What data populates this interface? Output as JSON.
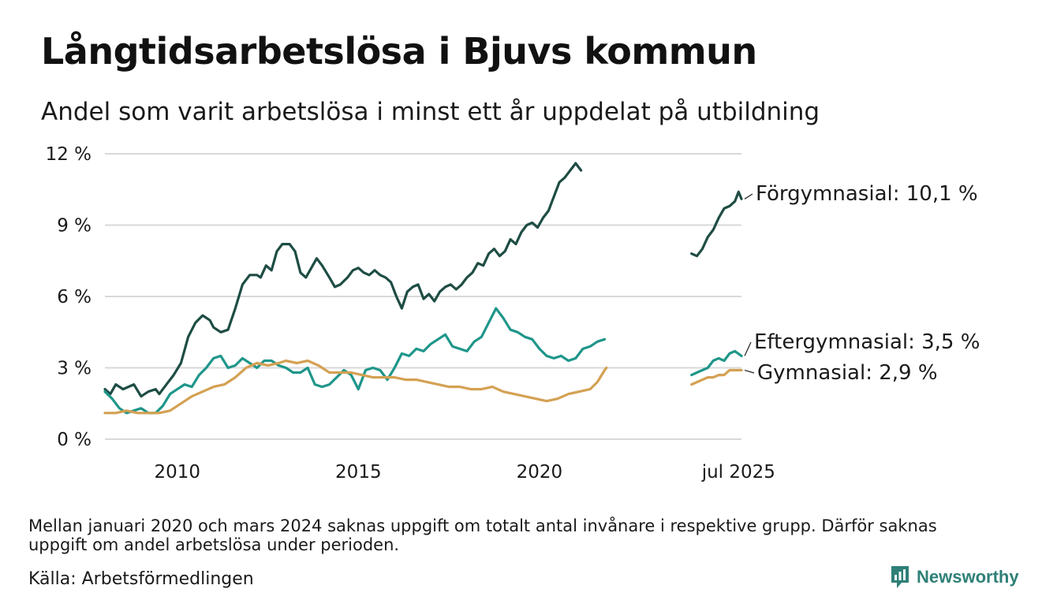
{
  "title": "Långtidsarbetslösa i Bjuvs kommun",
  "subtitle": "Andel som varit arbetslösa i minst ett år uppdelat på utbildning",
  "note": "Mellan januari 2020 och mars 2024 saknas uppgift om totalt antal invånare i respektive grupp. Därför saknas uppgift om andel arbetslösa under perioden.",
  "source": "Källa: Arbetsförmedlingen",
  "brand": "Newsworthy",
  "brand_icon": "newsworthy-logo-icon",
  "chart_data": {
    "type": "line",
    "title": "Långtidsarbetslösa i Bjuvs kommun",
    "subtitle": "Andel som varit arbetslösa i minst ett år uppdelat på utbildning",
    "ylim": [
      0,
      12
    ],
    "yticks": [
      0,
      3,
      6,
      9,
      12
    ],
    "ytick_labels": [
      "0 %",
      "3 %",
      "6 %",
      "9 %",
      "12 %"
    ],
    "xlim": [
      2008.0,
      2025.58
    ],
    "xticks": [
      2010,
      2015,
      2020,
      2025.5
    ],
    "xtick_labels": [
      "2010",
      "2015",
      "2020",
      "jul 2025"
    ],
    "grid": "horizontal",
    "legend": "direct labels at right end of each line",
    "series": [
      {
        "name": "Förgymnasial",
        "end_label": "Förgymnasial: 10,1 %",
        "color": "#1e4d44",
        "segments": [
          [
            [
              2008.0,
              2.1
            ],
            [
              2008.15,
              1.9
            ],
            [
              2008.3,
              2.3
            ],
            [
              2008.5,
              2.1
            ],
            [
              2008.8,
              2.3
            ],
            [
              2009.0,
              1.8
            ],
            [
              2009.2,
              2.0
            ],
            [
              2009.4,
              2.1
            ],
            [
              2009.5,
              1.9
            ],
            [
              2009.7,
              2.3
            ],
            [
              2009.9,
              2.7
            ],
            [
              2010.1,
              3.2
            ],
            [
              2010.3,
              4.3
            ],
            [
              2010.5,
              4.9
            ],
            [
              2010.7,
              5.2
            ],
            [
              2010.9,
              5.0
            ],
            [
              2011.0,
              4.7
            ],
            [
              2011.2,
              4.5
            ],
            [
              2011.4,
              4.6
            ],
            [
              2011.6,
              5.5
            ],
            [
              2011.8,
              6.5
            ],
            [
              2012.0,
              6.9
            ],
            [
              2012.2,
              6.9
            ],
            [
              2012.3,
              6.8
            ],
            [
              2012.45,
              7.3
            ],
            [
              2012.6,
              7.1
            ],
            [
              2012.75,
              7.9
            ],
            [
              2012.9,
              8.2
            ],
            [
              2013.1,
              8.2
            ],
            [
              2013.25,
              7.9
            ],
            [
              2013.4,
              7.0
            ],
            [
              2013.55,
              6.8
            ],
            [
              2013.7,
              7.2
            ],
            [
              2013.85,
              7.6
            ],
            [
              2014.0,
              7.3
            ],
            [
              2014.2,
              6.8
            ],
            [
              2014.35,
              6.4
            ],
            [
              2014.5,
              6.5
            ],
            [
              2014.7,
              6.8
            ],
            [
              2014.85,
              7.1
            ],
            [
              2015.0,
              7.2
            ],
            [
              2015.15,
              7.0
            ],
            [
              2015.3,
              6.9
            ],
            [
              2015.45,
              7.1
            ],
            [
              2015.6,
              6.9
            ],
            [
              2015.75,
              6.8
            ],
            [
              2015.9,
              6.6
            ],
            [
              2016.05,
              6.0
            ],
            [
              2016.2,
              5.5
            ],
            [
              2016.35,
              6.2
            ],
            [
              2016.5,
              6.4
            ],
            [
              2016.65,
              6.5
            ],
            [
              2016.8,
              5.9
            ],
            [
              2016.95,
              6.1
            ],
            [
              2017.1,
              5.8
            ],
            [
              2017.25,
              6.2
            ],
            [
              2017.4,
              6.4
            ],
            [
              2017.55,
              6.5
            ],
            [
              2017.7,
              6.3
            ],
            [
              2017.85,
              6.5
            ],
            [
              2018.0,
              6.8
            ],
            [
              2018.15,
              7.0
            ],
            [
              2018.3,
              7.4
            ],
            [
              2018.45,
              7.3
            ],
            [
              2018.6,
              7.8
            ],
            [
              2018.75,
              8.0
            ],
            [
              2018.9,
              7.7
            ],
            [
              2019.05,
              7.9
            ],
            [
              2019.2,
              8.4
            ],
            [
              2019.35,
              8.2
            ],
            [
              2019.5,
              8.7
            ],
            [
              2019.65,
              9.0
            ],
            [
              2019.8,
              9.1
            ],
            [
              2019.95,
              8.9
            ],
            [
              2020.1,
              9.3
            ],
            [
              2020.25,
              9.6
            ],
            [
              2020.4,
              10.2
            ],
            [
              2020.55,
              10.8
            ],
            [
              2020.7,
              11.0
            ],
            [
              2020.85,
              11.3
            ],
            [
              2021.0,
              11.6
            ],
            [
              2021.15,
              11.3
            ]
          ],
          [
            [
              2024.2,
              7.8
            ],
            [
              2024.35,
              7.7
            ],
            [
              2024.5,
              8.0
            ],
            [
              2024.65,
              8.5
            ],
            [
              2024.8,
              8.8
            ],
            [
              2024.95,
              9.3
            ],
            [
              2025.1,
              9.7
            ],
            [
              2025.25,
              9.8
            ],
            [
              2025.4,
              10.0
            ],
            [
              2025.5,
              10.4
            ],
            [
              2025.58,
              10.1
            ]
          ]
        ]
      },
      {
        "name": "Eftergymnasial",
        "end_label": "Eftergymnasial:  3,5 %",
        "color": "#1f968a",
        "segments": [
          [
            [
              2008.0,
              2.0
            ],
            [
              2008.2,
              1.7
            ],
            [
              2008.4,
              1.3
            ],
            [
              2008.6,
              1.1
            ],
            [
              2008.8,
              1.2
            ],
            [
              2009.0,
              1.3
            ],
            [
              2009.2,
              1.1
            ],
            [
              2009.4,
              1.1
            ],
            [
              2009.6,
              1.4
            ],
            [
              2009.8,
              1.9
            ],
            [
              2010.0,
              2.1
            ],
            [
              2010.2,
              2.3
            ],
            [
              2010.4,
              2.2
            ],
            [
              2010.6,
              2.7
            ],
            [
              2010.8,
              3.0
            ],
            [
              2011.0,
              3.4
            ],
            [
              2011.2,
              3.5
            ],
            [
              2011.4,
              3.0
            ],
            [
              2011.6,
              3.1
            ],
            [
              2011.8,
              3.4
            ],
            [
              2012.0,
              3.2
            ],
            [
              2012.2,
              3.0
            ],
            [
              2012.4,
              3.3
            ],
            [
              2012.6,
              3.3
            ],
            [
              2012.8,
              3.1
            ],
            [
              2013.0,
              3.0
            ],
            [
              2013.2,
              2.8
            ],
            [
              2013.4,
              2.8
            ],
            [
              2013.6,
              3.0
            ],
            [
              2013.8,
              2.3
            ],
            [
              2014.0,
              2.2
            ],
            [
              2014.2,
              2.3
            ],
            [
              2014.4,
              2.6
            ],
            [
              2014.6,
              2.9
            ],
            [
              2014.8,
              2.7
            ],
            [
              2015.0,
              2.1
            ],
            [
              2015.2,
              2.9
            ],
            [
              2015.4,
              3.0
            ],
            [
              2015.6,
              2.9
            ],
            [
              2015.8,
              2.5
            ],
            [
              2016.0,
              3.0
            ],
            [
              2016.2,
              3.6
            ],
            [
              2016.4,
              3.5
            ],
            [
              2016.6,
              3.8
            ],
            [
              2016.8,
              3.7
            ],
            [
              2017.0,
              4.0
            ],
            [
              2017.2,
              4.2
            ],
            [
              2017.4,
              4.4
            ],
            [
              2017.6,
              3.9
            ],
            [
              2017.8,
              3.8
            ],
            [
              2018.0,
              3.7
            ],
            [
              2018.2,
              4.1
            ],
            [
              2018.4,
              4.3
            ],
            [
              2018.6,
              4.9
            ],
            [
              2018.8,
              5.5
            ],
            [
              2019.0,
              5.1
            ],
            [
              2019.2,
              4.6
            ],
            [
              2019.4,
              4.5
            ],
            [
              2019.6,
              4.3
            ],
            [
              2019.8,
              4.2
            ],
            [
              2020.0,
              3.8
            ],
            [
              2020.2,
              3.5
            ],
            [
              2020.4,
              3.4
            ],
            [
              2020.6,
              3.5
            ],
            [
              2020.8,
              3.3
            ],
            [
              2021.0,
              3.4
            ],
            [
              2021.2,
              3.8
            ],
            [
              2021.4,
              3.9
            ],
            [
              2021.6,
              4.1
            ],
            [
              2021.8,
              4.2
            ]
          ],
          [
            [
              2024.2,
              2.7
            ],
            [
              2024.35,
              2.8
            ],
            [
              2024.5,
              2.9
            ],
            [
              2024.65,
              3.0
            ],
            [
              2024.8,
              3.3
            ],
            [
              2024.95,
              3.4
            ],
            [
              2025.1,
              3.3
            ],
            [
              2025.25,
              3.6
            ],
            [
              2025.4,
              3.7
            ],
            [
              2025.58,
              3.5
            ]
          ]
        ]
      },
      {
        "name": "Gymnasial",
        "end_label": "Gymnasial:  2,9 %",
        "color": "#d4a153",
        "segments": [
          [
            [
              2008.0,
              1.1
            ],
            [
              2008.3,
              1.1
            ],
            [
              2008.6,
              1.2
            ],
            [
              2008.9,
              1.1
            ],
            [
              2009.2,
              1.1
            ],
            [
              2009.5,
              1.1
            ],
            [
              2009.8,
              1.2
            ],
            [
              2010.1,
              1.5
            ],
            [
              2010.4,
              1.8
            ],
            [
              2010.7,
              2.0
            ],
            [
              2011.0,
              2.2
            ],
            [
              2011.3,
              2.3
            ],
            [
              2011.6,
              2.6
            ],
            [
              2011.9,
              3.0
            ],
            [
              2012.2,
              3.2
            ],
            [
              2012.5,
              3.1
            ],
            [
              2012.8,
              3.2
            ],
            [
              2013.0,
              3.3
            ],
            [
              2013.3,
              3.2
            ],
            [
              2013.6,
              3.3
            ],
            [
              2013.9,
              3.1
            ],
            [
              2014.2,
              2.8
            ],
            [
              2014.5,
              2.8
            ],
            [
              2014.8,
              2.8
            ],
            [
              2015.1,
              2.7
            ],
            [
              2015.4,
              2.6
            ],
            [
              2015.7,
              2.6
            ],
            [
              2016.0,
              2.6
            ],
            [
              2016.3,
              2.5
            ],
            [
              2016.6,
              2.5
            ],
            [
              2016.9,
              2.4
            ],
            [
              2017.2,
              2.3
            ],
            [
              2017.5,
              2.2
            ],
            [
              2017.8,
              2.2
            ],
            [
              2018.1,
              2.1
            ],
            [
              2018.4,
              2.1
            ],
            [
              2018.7,
              2.2
            ],
            [
              2019.0,
              2.0
            ],
            [
              2019.3,
              1.9
            ],
            [
              2019.6,
              1.8
            ],
            [
              2019.9,
              1.7
            ],
            [
              2020.2,
              1.6
            ],
            [
              2020.5,
              1.7
            ],
            [
              2020.8,
              1.9
            ],
            [
              2021.1,
              2.0
            ],
            [
              2021.4,
              2.1
            ],
            [
              2021.6,
              2.4
            ],
            [
              2021.8,
              2.9
            ],
            [
              2021.85,
              3.0
            ]
          ],
          [
            [
              2024.2,
              2.3
            ],
            [
              2024.35,
              2.4
            ],
            [
              2024.5,
              2.5
            ],
            [
              2024.65,
              2.6
            ],
            [
              2024.8,
              2.6
            ],
            [
              2024.95,
              2.7
            ],
            [
              2025.1,
              2.7
            ],
            [
              2025.25,
              2.9
            ],
            [
              2025.4,
              2.9
            ],
            [
              2025.58,
              2.9
            ]
          ]
        ]
      }
    ]
  }
}
